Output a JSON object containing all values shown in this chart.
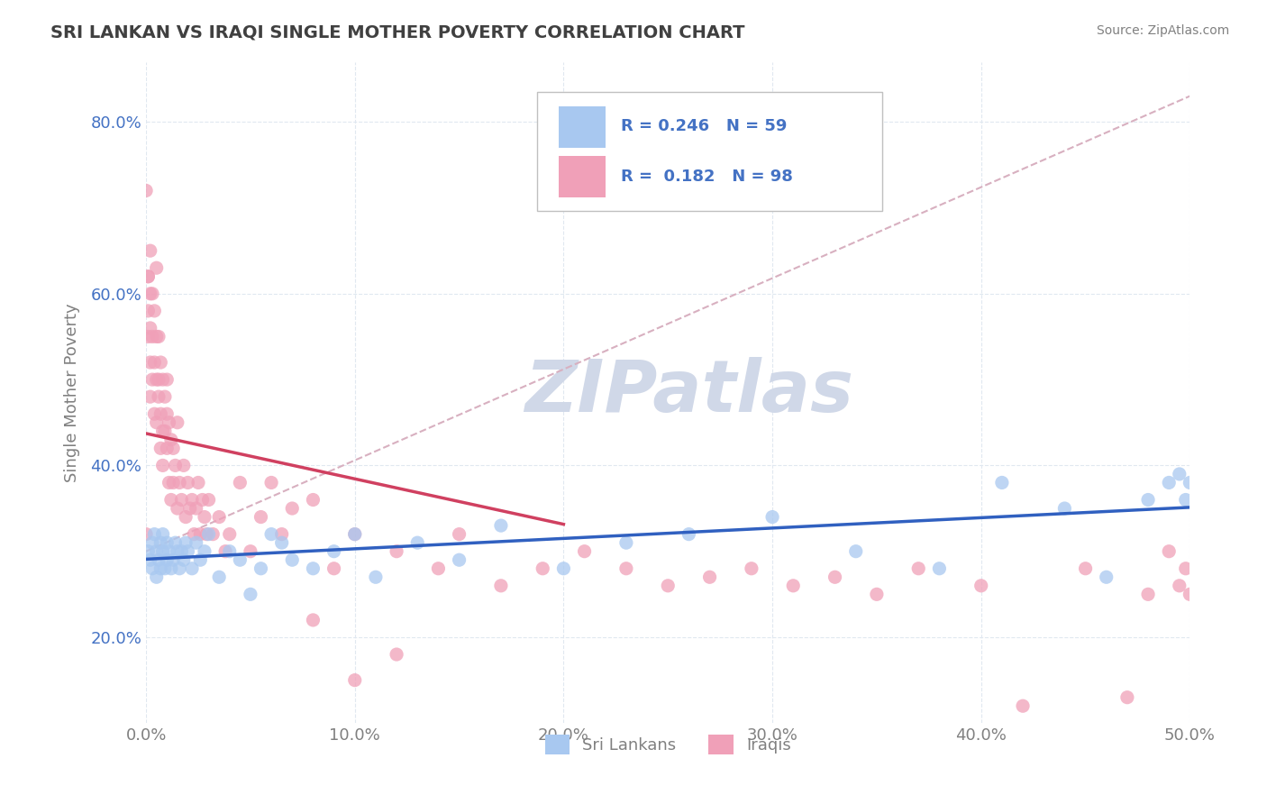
{
  "title": "SRI LANKAN VS IRAQI SINGLE MOTHER POVERTY CORRELATION CHART",
  "source": "Source: ZipAtlas.com",
  "ylabel": "Single Mother Poverty",
  "xlim": [
    0.0,
    0.5
  ],
  "ylim": [
    0.1,
    0.87
  ],
  "xticks": [
    0.0,
    0.1,
    0.2,
    0.3,
    0.4,
    0.5
  ],
  "yticks": [
    0.2,
    0.4,
    0.6,
    0.8
  ],
  "xtick_labels": [
    "0.0%",
    "10.0%",
    "20.0%",
    "30.0%",
    "40.0%",
    "50.0%"
  ],
  "ytick_labels": [
    "20.0%",
    "40.0%",
    "60.0%",
    "80.0%"
  ],
  "legend_R": [
    0.246,
    0.182
  ],
  "legend_N": [
    59,
    98
  ],
  "blue_color": "#A8C8F0",
  "pink_color": "#F0A0B8",
  "blue_line_color": "#3060C0",
  "pink_line_color": "#D04060",
  "dashed_line_color": "#D8B0C0",
  "watermark": "ZIPatlas",
  "watermark_color": "#D0D8E8",
  "title_color": "#404040",
  "axis_color": "#808080",
  "ytick_color": "#4472C4",
  "xtick_color": "#808080",
  "legend_text_color": "#4472C4",
  "grid_color": "#E0E8F0",
  "grid_style": "--",
  "sri_lankan_x": [
    0.001,
    0.002,
    0.003,
    0.003,
    0.004,
    0.005,
    0.005,
    0.006,
    0.007,
    0.007,
    0.008,
    0.008,
    0.009,
    0.01,
    0.01,
    0.011,
    0.012,
    0.013,
    0.014,
    0.015,
    0.016,
    0.017,
    0.018,
    0.019,
    0.02,
    0.022,
    0.024,
    0.026,
    0.028,
    0.03,
    0.035,
    0.04,
    0.045,
    0.05,
    0.055,
    0.06,
    0.065,
    0.07,
    0.08,
    0.09,
    0.1,
    0.11,
    0.13,
    0.15,
    0.17,
    0.2,
    0.23,
    0.26,
    0.3,
    0.34,
    0.38,
    0.41,
    0.44,
    0.46,
    0.48,
    0.49,
    0.495,
    0.498,
    0.5
  ],
  "sri_lankan_y": [
    0.3,
    0.29,
    0.31,
    0.28,
    0.32,
    0.3,
    0.27,
    0.29,
    0.31,
    0.28,
    0.3,
    0.32,
    0.28,
    0.29,
    0.31,
    0.3,
    0.28,
    0.29,
    0.31,
    0.3,
    0.28,
    0.3,
    0.29,
    0.31,
    0.3,
    0.28,
    0.31,
    0.29,
    0.3,
    0.32,
    0.27,
    0.3,
    0.29,
    0.25,
    0.28,
    0.32,
    0.31,
    0.29,
    0.28,
    0.3,
    0.32,
    0.27,
    0.31,
    0.29,
    0.33,
    0.28,
    0.31,
    0.32,
    0.34,
    0.3,
    0.28,
    0.38,
    0.35,
    0.27,
    0.36,
    0.38,
    0.39,
    0.36,
    0.38
  ],
  "iraqi_x": [
    0.0,
    0.0,
    0.001,
    0.001,
    0.001,
    0.001,
    0.002,
    0.002,
    0.002,
    0.002,
    0.002,
    0.003,
    0.003,
    0.003,
    0.004,
    0.004,
    0.004,
    0.005,
    0.005,
    0.005,
    0.005,
    0.006,
    0.006,
    0.006,
    0.007,
    0.007,
    0.007,
    0.008,
    0.008,
    0.008,
    0.009,
    0.009,
    0.01,
    0.01,
    0.01,
    0.011,
    0.011,
    0.012,
    0.012,
    0.013,
    0.013,
    0.014,
    0.015,
    0.015,
    0.016,
    0.017,
    0.018,
    0.019,
    0.02,
    0.021,
    0.022,
    0.023,
    0.024,
    0.025,
    0.026,
    0.027,
    0.028,
    0.029,
    0.03,
    0.032,
    0.035,
    0.038,
    0.04,
    0.045,
    0.05,
    0.055,
    0.06,
    0.065,
    0.07,
    0.08,
    0.09,
    0.1,
    0.12,
    0.14,
    0.15,
    0.17,
    0.19,
    0.21,
    0.23,
    0.25,
    0.27,
    0.29,
    0.31,
    0.33,
    0.35,
    0.37,
    0.4,
    0.42,
    0.45,
    0.47,
    0.48,
    0.49,
    0.495,
    0.498,
    0.5,
    0.1,
    0.12,
    0.08
  ],
  "iraqi_y": [
    0.72,
    0.32,
    0.62,
    0.58,
    0.62,
    0.55,
    0.6,
    0.56,
    0.52,
    0.48,
    0.65,
    0.55,
    0.6,
    0.5,
    0.58,
    0.52,
    0.46,
    0.55,
    0.5,
    0.45,
    0.63,
    0.5,
    0.55,
    0.48,
    0.52,
    0.46,
    0.42,
    0.5,
    0.44,
    0.4,
    0.48,
    0.44,
    0.5,
    0.46,
    0.42,
    0.45,
    0.38,
    0.43,
    0.36,
    0.42,
    0.38,
    0.4,
    0.45,
    0.35,
    0.38,
    0.36,
    0.4,
    0.34,
    0.38,
    0.35,
    0.36,
    0.32,
    0.35,
    0.38,
    0.32,
    0.36,
    0.34,
    0.32,
    0.36,
    0.32,
    0.34,
    0.3,
    0.32,
    0.38,
    0.3,
    0.34,
    0.38,
    0.32,
    0.35,
    0.36,
    0.28,
    0.32,
    0.3,
    0.28,
    0.32,
    0.26,
    0.28,
    0.3,
    0.28,
    0.26,
    0.27,
    0.28,
    0.26,
    0.27,
    0.25,
    0.28,
    0.26,
    0.12,
    0.28,
    0.13,
    0.25,
    0.3,
    0.26,
    0.28,
    0.25,
    0.15,
    0.18,
    0.22
  ]
}
